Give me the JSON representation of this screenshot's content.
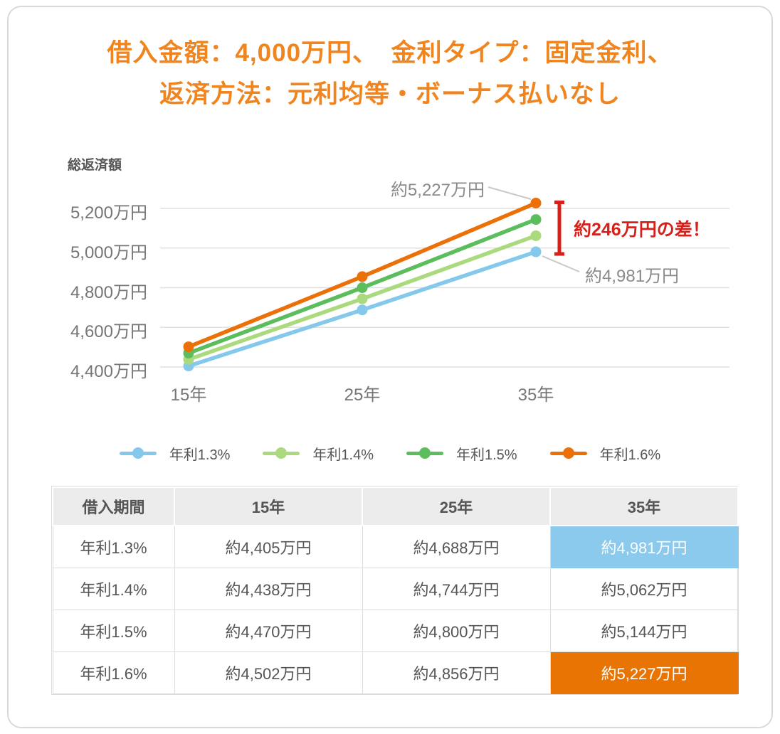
{
  "title": {
    "line1": "借入金額：4,000万円、　金利タイプ：固定金利、",
    "line2": "返済方法：元利均等・ボーナス払いなし",
    "color": "#f0841e"
  },
  "chart_data": {
    "type": "line",
    "ylabel": "総返済額",
    "x_categories": [
      "15年",
      "25年",
      "35年"
    ],
    "series": [
      {
        "name": "年利1.3%",
        "color": "#84c8ec",
        "values": [
          4405,
          4688,
          4981
        ]
      },
      {
        "name": "年利1.4%",
        "color": "#abd97d",
        "values": [
          4438,
          4744,
          5062
        ]
      },
      {
        "name": "年利1.5%",
        "color": "#5bbd5b",
        "values": [
          4470,
          4800,
          5144
        ]
      },
      {
        "name": "年利1.6%",
        "color": "#ec7008",
        "values": [
          4502,
          4856,
          5227
        ]
      }
    ],
    "yticks": [
      {
        "value": 4400,
        "label": "4,400万円"
      },
      {
        "value": 4600,
        "label": "4,600万円"
      },
      {
        "value": 4800,
        "label": "4,800万円"
      },
      {
        "value": 5000,
        "label": "5,000万円"
      },
      {
        "value": 5200,
        "label": "5,200万円"
      }
    ],
    "ylim": [
      4400,
      5300
    ],
    "grid": true,
    "legend_position": "bottom",
    "annotations": {
      "max_point_label": "約5,227万円",
      "min_point_label": "約4,981万円",
      "difference_label": "約246万円の差！",
      "difference_color": "#d7201a",
      "callout_text_color": "#8a8a8a"
    }
  },
  "table": {
    "headers": [
      "借入期間",
      "15年",
      "25年",
      "35年"
    ],
    "rows": [
      {
        "cells": [
          "年利1.3%",
          "約4,405万円",
          "約4,688万円",
          "約4,981万円"
        ],
        "highlight_col": 3,
        "highlight_color": "#8bcaec"
      },
      {
        "cells": [
          "年利1.4%",
          "約4,438万円",
          "約4,744万円",
          "約5,062万円"
        ]
      },
      {
        "cells": [
          "年利1.5%",
          "約4,470万円",
          "約4,800万円",
          "約5,144万円"
        ]
      },
      {
        "cells": [
          "年利1.6%",
          "約4,502万円",
          "約4,856万円",
          "約5,227万円"
        ],
        "highlight_col": 3,
        "highlight_color": "#e87404"
      }
    ]
  }
}
